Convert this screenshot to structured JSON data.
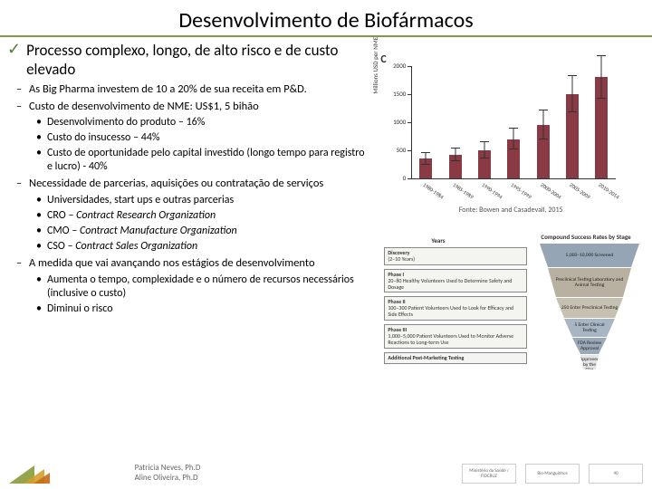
{
  "title": "Desenvolvimento de Biofármacos",
  "title_underline_color": "#7a9a4a",
  "main_point": "Processo complexo, longo, de alto risco e de custo elevado",
  "checkmark_color": "#5a7a3a",
  "dash_items": [
    {
      "text": "As Big Pharma investem de 10 a 20% de sua receita em P&D.",
      "bullets": []
    },
    {
      "text": "Custo de desenvolvimento de NME: US$1, 5 bihão",
      "bullets": [
        "Desenvolvimento do produto – 16%",
        "Custo do insucesso – 44%",
        "Custo de oportunidade pelo capital investido (longo tempo para registro e lucro) - 40%"
      ]
    },
    {
      "text": "Necessidade de parcerias, aquisições ou contratação de serviços",
      "bullets": [
        "Universidades, start ups e outras parcerias",
        "CRO – <i>Contract Research Organization</i>",
        "CMO – <i>Contract Manufacture Organization</i>",
        "CSO – <i>Contract Sales Organization</i>"
      ]
    },
    {
      "text": "A medida que vai avançando nos estágios de desenvolvimento",
      "bullets": [
        "Aumenta o tempo, complexidade e o número de recursos necessários (inclusive o custo)",
        "Diminui o risco"
      ]
    }
  ],
  "chart": {
    "type": "bar",
    "panel_label": "C",
    "ylabel": "Millions USD per NME",
    "ylim": [
      0,
      2000
    ],
    "ytick_step": 500,
    "categories": [
      "1980-1984",
      "1985-1989",
      "1990-1994",
      "1995-1999",
      "2000-2004",
      "2005-2009",
      "2010-2014"
    ],
    "values": [
      350,
      420,
      500,
      700,
      950,
      1500,
      1800
    ],
    "errors": [
      100,
      110,
      140,
      180,
      260,
      320,
      380
    ],
    "bar_color": "#8a3a45",
    "axis_color": "#333333",
    "label_fontsize": 7,
    "source": "Fonte: Bowen and Casadevall, 2015"
  },
  "funnel": {
    "title": "Compound Success Rates by Stage",
    "years_label": "Years",
    "left_boxes": [
      {
        "h": "Discovery",
        "s": "(2–10 Years)"
      },
      {
        "h": "Phase I",
        "s": "20–80 Healthy Volunteers Used to Determine Safety and Dosage"
      },
      {
        "h": "Phase II",
        "s": "100–300 Patient Volunteers Used to Look for Efficacy and Side Effects"
      },
      {
        "h": "Phase III",
        "s": "1,000–5,000 Patient Volunteers Used to Monitor Adverse Reactions to Long-term Use"
      },
      {
        "h": "Additional Post-Marketing Testing",
        "s": ""
      }
    ],
    "right_stages": [
      {
        "label": "5,000–10,000 Screened",
        "height": 26
      },
      {
        "label": "Preclinical Testing Laboratory and Animal Testing",
        "height": 32
      },
      {
        "label": "250 Enter Preclinical Testing",
        "height": 22
      },
      {
        "label": "5 Enter Clinical Testing",
        "height": 20
      },
      {
        "label": "FDA Review Approval",
        "height": 18
      },
      {
        "label": "1 Approved by the FDA",
        "height": 16
      }
    ],
    "stage_colors": [
      "#95a5b5",
      "#b8b0a0",
      "#c5c0b0",
      "#a8b5c2",
      "#9aa8b8",
      "#e4e4e4"
    ]
  },
  "footer": {
    "authors": [
      "Patricia Neves, Ph.D",
      "Aline Oliveira, Ph.D"
    ],
    "triangle_colors": [
      "#8a9a3a",
      "#d4a028",
      "#c56a1a"
    ],
    "logos": [
      "Ministério da Saúde / FIOCRUZ",
      "Bio-Manguinhos",
      "40"
    ]
  }
}
